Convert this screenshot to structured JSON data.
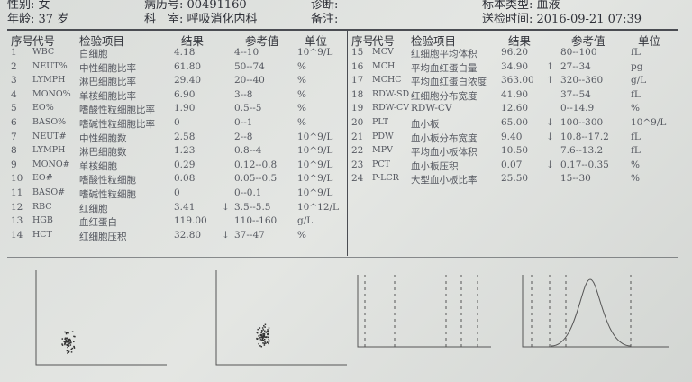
{
  "header": {
    "gender": "性别: 女",
    "record_no": "病历号: 00491160",
    "diagnosis": "诊断:",
    "specimen": "标本类型: 血液",
    "age": "年龄: 37 岁",
    "department": "科　室: 呼吸消化内科",
    "remarks": "备注:",
    "sent_time": "送检时间: 2016-09-21 07:39"
  },
  "columns": {
    "seq": "序号",
    "code": "代号",
    "item": "检验项目",
    "result": "结果",
    "ref": "参考值",
    "unit": "单位"
  },
  "left_rows": [
    {
      "n": "1",
      "code": "WBC",
      "name": "白细胞",
      "result": "4.18",
      "flag": "",
      "ref": "4--10",
      "unit": "10^9/L"
    },
    {
      "n": "2",
      "code": "NEUT%",
      "name": "中性细胞比率",
      "result": "61.80",
      "flag": "",
      "ref": "50--74",
      "unit": "%"
    },
    {
      "n": "3",
      "code": "LYMPH",
      "name": "淋巴细胞比率",
      "result": "29.40",
      "flag": "",
      "ref": "20--40",
      "unit": "%"
    },
    {
      "n": "4",
      "code": "MONO%",
      "name": "单核细胞比率",
      "result": "6.90",
      "flag": "",
      "ref": "3--8",
      "unit": "%"
    },
    {
      "n": "5",
      "code": "EO%",
      "name": "嗜酸性粒细胞比率",
      "result": "1.90",
      "flag": "",
      "ref": "0.5--5",
      "unit": "%"
    },
    {
      "n": "6",
      "code": "BASO%",
      "name": "嗜碱性粒细胞比率",
      "result": "0",
      "flag": "",
      "ref": "0--1",
      "unit": "%"
    },
    {
      "n": "7",
      "code": "NEUT#",
      "name": "中性细胞数",
      "result": "2.58",
      "flag": "",
      "ref": "2--8",
      "unit": "10^9/L"
    },
    {
      "n": "8",
      "code": "LYMPH",
      "name": "淋巴细胞数",
      "result": "1.23",
      "flag": "",
      "ref": "0.8--4",
      "unit": "10^9/L"
    },
    {
      "n": "9",
      "code": "MONO#",
      "name": "单核细胞",
      "result": "0.29",
      "flag": "",
      "ref": "0.12--0.8",
      "unit": "10^9/L"
    },
    {
      "n": "10",
      "code": "EO#",
      "name": "嗜酸性粒细胞",
      "result": "0.08",
      "flag": "",
      "ref": "0.05--0.5",
      "unit": "10^9/L"
    },
    {
      "n": "11",
      "code": "BASO#",
      "name": "嗜碱性粒细胞",
      "result": "0",
      "flag": "",
      "ref": "0--0.1",
      "unit": "10^9/L"
    },
    {
      "n": "12",
      "code": "RBC",
      "name": "红细胞",
      "result": "3.41",
      "flag": "↓",
      "ref": "3.5--5.5",
      "unit": "10^12/L"
    },
    {
      "n": "13",
      "code": "HGB",
      "name": "血红蛋白",
      "result": "119.00",
      "flag": "",
      "ref": "110--160",
      "unit": "g/L"
    },
    {
      "n": "14",
      "code": "HCT",
      "name": "红细胞压积",
      "result": "32.80",
      "flag": "↓",
      "ref": "37--47",
      "unit": "%"
    }
  ],
  "right_rows": [
    {
      "n": "15",
      "code": "MCV",
      "name": "红细胞平均体积",
      "result": "96.20",
      "flag": "",
      "ref": "80--100",
      "unit": "fL"
    },
    {
      "n": "16",
      "code": "MCH",
      "name": "平均血红蛋白量",
      "result": "34.90",
      "flag": "↑",
      "ref": "27--34",
      "unit": "pg"
    },
    {
      "n": "17",
      "code": "MCHC",
      "name": "平均血红蛋白浓度",
      "result": "363.00",
      "flag": "↑",
      "ref": "320--360",
      "unit": "g/L"
    },
    {
      "n": "18",
      "code": "RDW-SD",
      "name": "红细胞分布宽度",
      "result": "41.90",
      "flag": "",
      "ref": "37--54",
      "unit": "fL"
    },
    {
      "n": "19",
      "code": "RDW-CV",
      "name": "RDW-CV",
      "result": "12.60",
      "flag": "",
      "ref": "0--14.9",
      "unit": "%"
    },
    {
      "n": "20",
      "code": "PLT",
      "name": "血小板",
      "result": "65.00",
      "flag": "↓",
      "ref": "100--300",
      "unit": "10^9/L"
    },
    {
      "n": "21",
      "code": "PDW",
      "name": "血小板分布宽度",
      "result": "9.40",
      "flag": "↓",
      "ref": "10.8--17.2",
      "unit": "fL"
    },
    {
      "n": "22",
      "code": "MPV",
      "name": "平均血小板体积",
      "result": "10.50",
      "flag": "",
      "ref": "7.6--13.2",
      "unit": "fL"
    },
    {
      "n": "23",
      "code": "PCT",
      "name": "血小板压积",
      "result": "0.07",
      "flag": "↓",
      "ref": "0.17--0.35",
      "unit": "%"
    },
    {
      "n": "24",
      "code": "P-LCR",
      "name": "大型血小板比率",
      "result": "25.50",
      "flag": "",
      "ref": "15--30",
      "unit": "%"
    }
  ]
}
